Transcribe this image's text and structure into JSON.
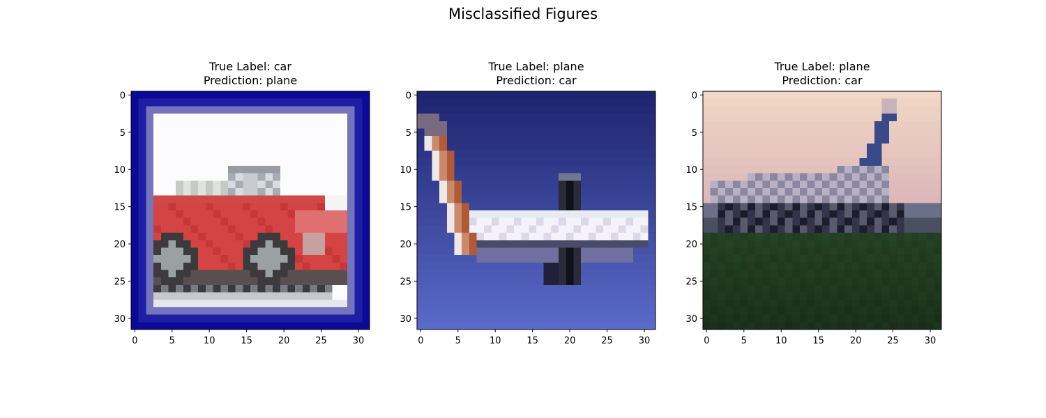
{
  "figure": {
    "title": "Misclassified Figures"
  },
  "chart_data": [
    {
      "type": "image",
      "title_lines": [
        "True Label: car",
        "Prediction: plane"
      ],
      "true_label": "car",
      "prediction": "plane",
      "image_size": [
        32,
        32
      ],
      "xlim": [
        -0.5,
        31.5
      ],
      "ylim": [
        31.5,
        -0.5
      ],
      "xticks": [
        0,
        5,
        10,
        15,
        20,
        25,
        30
      ],
      "yticks": [
        0,
        5,
        10,
        15,
        20,
        25,
        30
      ],
      "scene": "car"
    },
    {
      "type": "image",
      "title_lines": [
        "True Label: plane",
        "Prediction: car"
      ],
      "true_label": "plane",
      "prediction": "car",
      "image_size": [
        32,
        32
      ],
      "xlim": [
        -0.5,
        31.5
      ],
      "ylim": [
        31.5,
        -0.5
      ],
      "xticks": [
        0,
        5,
        10,
        15,
        20,
        25,
        30
      ],
      "yticks": [
        0,
        5,
        10,
        15,
        20,
        25,
        30
      ],
      "scene": "plane-blue"
    },
    {
      "type": "image",
      "title_lines": [
        "True Label: plane",
        "Prediction: car"
      ],
      "true_label": "plane",
      "prediction": "car",
      "image_size": [
        32,
        32
      ],
      "xlim": [
        -0.5,
        31.5
      ],
      "ylim": [
        31.5,
        -0.5
      ],
      "xticks": [
        0,
        5,
        10,
        15,
        20,
        25,
        30
      ],
      "yticks": [
        0,
        5,
        10,
        15,
        20,
        25,
        30
      ],
      "scene": "plane-ground"
    }
  ]
}
